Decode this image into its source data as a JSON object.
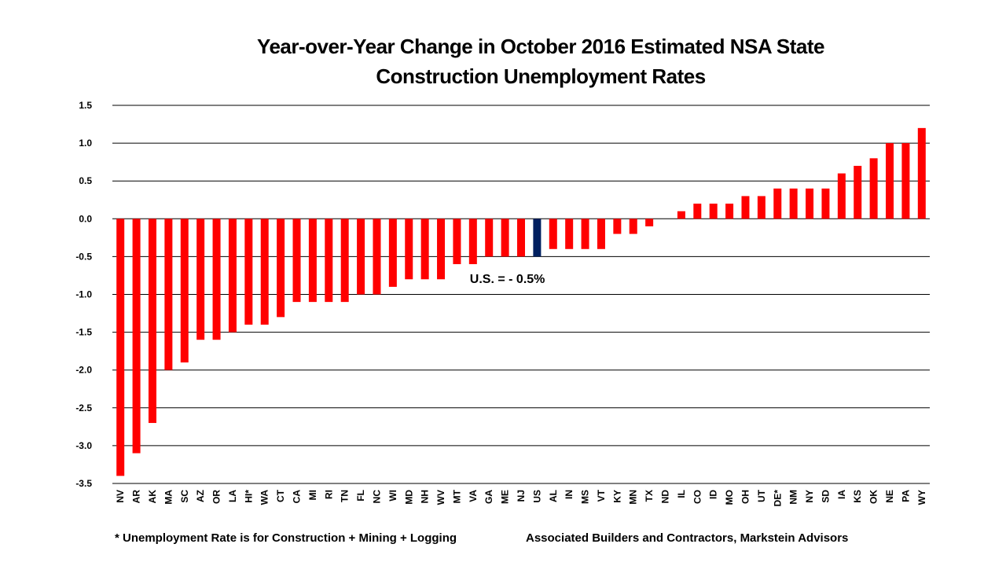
{
  "chart_data": {
    "type": "bar",
    "title_line1": "Year-over-Year Change in October 2016 Estimated NSA State",
    "title_line2": "Construction Unemployment Rates",
    "xlabel": "",
    "ylabel": "",
    "ylim": [
      -3.5,
      1.5
    ],
    "yticks": [
      1.5,
      1.0,
      0.5,
      0.0,
      -0.5,
      -1.0,
      -1.5,
      -2.0,
      -2.5,
      -3.0,
      -3.5
    ],
    "grid": true,
    "categories": [
      "NV",
      "AR",
      "AK",
      "MA",
      "SC",
      "AZ",
      "OR",
      "LA",
      "HI*",
      "WA",
      "CT",
      "CA",
      "MI",
      "RI",
      "TN",
      "FL",
      "NC",
      "WI",
      "MD",
      "NH",
      "WV",
      "MT",
      "VA",
      "GA",
      "ME",
      "NJ",
      "US",
      "AL",
      "IN",
      "MS",
      "VT",
      "KY",
      "MN",
      "TX",
      "ND",
      "IL",
      "CO",
      "ID",
      "MO",
      "OH",
      "UT",
      "DE*",
      "NM",
      "NY",
      "SD",
      "IA",
      "KS",
      "OK",
      "NE",
      "PA",
      "WY"
    ],
    "values": [
      -3.4,
      -3.1,
      -2.7,
      -2.0,
      -1.9,
      -1.6,
      -1.6,
      -1.5,
      -1.4,
      -1.4,
      -1.3,
      -1.1,
      -1.1,
      -1.1,
      -1.1,
      -1.0,
      -1.0,
      -0.9,
      -0.8,
      -0.8,
      -0.8,
      -0.6,
      -0.6,
      -0.5,
      -0.5,
      -0.5,
      -0.5,
      -0.4,
      -0.4,
      -0.4,
      -0.4,
      -0.2,
      -0.2,
      -0.1,
      0.0,
      0.1,
      0.2,
      0.2,
      0.2,
      0.3,
      0.3,
      0.4,
      0.4,
      0.4,
      0.4,
      0.6,
      0.7,
      0.8,
      1.0,
      1.0,
      1.2
    ],
    "highlight_category": "US",
    "colors": {
      "bar": "#FF0000",
      "highlight": "#002060"
    },
    "annotation": "U.S. = - 0.5%",
    "footnote": "* Unemployment Rate is for Construction + Mining + Logging",
    "source": "Associated Builders and Contractors, Markstein Advisors"
  }
}
